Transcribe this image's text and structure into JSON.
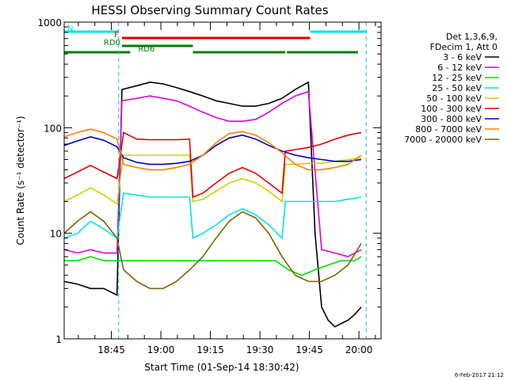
{
  "chart_data": {
    "type": "line",
    "title": "HESSI Observing Summary Count Rates",
    "xlabel": "Start Time (01-Sep-14 18:30:42)",
    "ylabel": "Count Rate (s⁻¹ detector⁻¹)",
    "y_scale": "log",
    "ylim": [
      1,
      1000
    ],
    "xlim_minutes_after_start": [
      0,
      96
    ],
    "x_start_clock": "18:30:42",
    "x_tick_labels": [
      "18:45",
      "19:00",
      "19:15",
      "19:30",
      "19:45",
      "20:00"
    ],
    "x_tick_clock_minutes": [
      1125,
      1140,
      1155,
      1170,
      1185,
      1200
    ],
    "y_tick_labels": [
      "1",
      "10",
      "100",
      "1000"
    ],
    "y_ticks": [
      1,
      10,
      100,
      1000
    ],
    "grid": false,
    "legend_position": "right",
    "legend_header": [
      "Det 1,3,6,9,",
      "FDecim 1, Att 0"
    ],
    "timestamp": "6-Feb-2017 21:12",
    "flags": [
      {
        "label": "N",
        "color": "#00e5e5",
        "segments": [
          [
            0,
            16.5
          ],
          [
            74.5,
            91.5
          ]
        ]
      },
      {
        "label": "F",
        "color": "#e00000",
        "segments": [
          [
            17.5,
            74.5
          ]
        ]
      },
      {
        "label": "RD0",
        "color": "#008000",
        "segments": [
          [
            17.5,
            39
          ]
        ]
      },
      {
        "label": "RD6",
        "color": "#008000",
        "segments": [
          [
            0,
            20
          ],
          [
            39,
            67
          ],
          [
            67.5,
            89
          ]
        ]
      }
    ],
    "vertical_markers_minutes": [
      16.5,
      91.5
    ],
    "series": [
      {
        "name": "3 - 6 keV",
        "color": "#000000",
        "x": [
          0,
          4,
          8,
          12,
          16,
          17.5,
          22,
          26,
          30,
          34,
          38,
          42,
          46,
          50,
          54,
          58,
          62,
          66,
          70,
          74,
          76,
          78,
          80,
          82,
          84,
          86,
          88,
          90
        ],
        "values": [
          3.5,
          3.3,
          3,
          3,
          2.6,
          230,
          250,
          270,
          260,
          240,
          220,
          200,
          180,
          170,
          160,
          160,
          170,
          190,
          230,
          270,
          10,
          2,
          1.5,
          1.3,
          1.4,
          1.5,
          1.7,
          2
        ]
      },
      {
        "name": "6 - 12 keV",
        "color": "#e000e0",
        "x": [
          0,
          4,
          8,
          12,
          16,
          17.5,
          22,
          26,
          30,
          34,
          38,
          42,
          46,
          50,
          54,
          58,
          62,
          66,
          70,
          74,
          78,
          82,
          86,
          90
        ],
        "values": [
          7,
          6.5,
          7,
          6.5,
          6.5,
          180,
          190,
          200,
          190,
          180,
          160,
          140,
          125,
          115,
          115,
          120,
          140,
          170,
          200,
          220,
          7,
          6.5,
          6,
          7
        ]
      },
      {
        "name": "12 - 25 keV",
        "color": "#00e000",
        "x": [
          0,
          4,
          8,
          12,
          16,
          20,
          24,
          28,
          32,
          36,
          40,
          44,
          48,
          52,
          56,
          60,
          64,
          68,
          72,
          76,
          80,
          84,
          88,
          90
        ],
        "values": [
          5.5,
          5.5,
          6,
          5.5,
          5.5,
          5.5,
          5.5,
          5.5,
          5.5,
          5.5,
          5.5,
          5.5,
          5.5,
          5.5,
          5.5,
          5.5,
          5.5,
          4.5,
          4,
          4.5,
          5,
          5.5,
          5.5,
          6
        ]
      },
      {
        "name": "25 - 50 keV",
        "color": "#00e5e5",
        "x": [
          0,
          4,
          8,
          12,
          16,
          18,
          22,
          26,
          30,
          34,
          38,
          39,
          42,
          46,
          50,
          54,
          58,
          62,
          66,
          67,
          70,
          74,
          78,
          82,
          86,
          90
        ],
        "values": [
          9,
          10,
          13,
          11,
          9,
          24,
          23,
          22,
          22,
          22,
          22,
          9,
          10,
          12,
          15,
          17,
          15,
          12,
          9,
          20,
          20,
          20,
          20,
          20,
          21,
          22
        ]
      },
      {
        "name": "50 - 100 keV",
        "color": "#d0d000",
        "x": [
          0,
          4,
          8,
          12,
          16,
          18,
          22,
          26,
          30,
          34,
          38,
          39,
          42,
          46,
          50,
          54,
          58,
          62,
          66,
          67,
          70,
          74,
          78,
          82,
          86,
          90
        ],
        "values": [
          20,
          23,
          27,
          23,
          19,
          55,
          55,
          55,
          55,
          55,
          55,
          20,
          21,
          25,
          30,
          33,
          30,
          25,
          20,
          45,
          45,
          46,
          46,
          48,
          50,
          52
        ]
      },
      {
        "name": "100 - 300 keV",
        "color": "#e00000",
        "x": [
          0,
          4,
          8,
          12,
          16,
          18,
          22,
          26,
          30,
          34,
          38,
          39,
          42,
          46,
          50,
          54,
          58,
          62,
          66,
          67,
          70,
          74,
          78,
          82,
          86,
          90
        ],
        "values": [
          33,
          38,
          44,
          38,
          33,
          90,
          78,
          77,
          77,
          77,
          78,
          22,
          24,
          30,
          37,
          42,
          37,
          30,
          24,
          60,
          62,
          65,
          70,
          78,
          85,
          90
        ]
      },
      {
        "name": "300 - 800 keV",
        "color": "#0000c0",
        "x": [
          0,
          4,
          8,
          12,
          16,
          18,
          22,
          26,
          30,
          34,
          38,
          42,
          46,
          50,
          54,
          58,
          62,
          66,
          70,
          74,
          78,
          82,
          86,
          90
        ],
        "values": [
          68,
          75,
          82,
          76,
          66,
          52,
          47,
          45,
          45,
          46,
          48,
          55,
          68,
          80,
          85,
          78,
          68,
          60,
          55,
          52,
          50,
          48,
          48,
          50
        ]
      },
      {
        "name": "800 - 7000 keV",
        "color": "#ff8000",
        "x": [
          0,
          4,
          8,
          12,
          16,
          18,
          22,
          26,
          30,
          34,
          38,
          42,
          46,
          50,
          54,
          58,
          62,
          66,
          70,
          74,
          78,
          82,
          86,
          90
        ],
        "values": [
          82,
          90,
          97,
          90,
          78,
          45,
          42,
          40,
          40,
          42,
          45,
          55,
          72,
          88,
          92,
          85,
          72,
          58,
          45,
          40,
          40,
          42,
          45,
          55
        ]
      },
      {
        "name": "7000 - 20000 keV",
        "color": "#806000",
        "x": [
          0,
          4,
          8,
          12,
          16,
          18,
          22,
          26,
          30,
          34,
          38,
          42,
          46,
          50,
          54,
          58,
          62,
          66,
          70,
          74,
          78,
          82,
          86,
          90
        ],
        "values": [
          10,
          13,
          16,
          13,
          9,
          4.5,
          3.5,
          3,
          3,
          3.5,
          4.5,
          6,
          9,
          13,
          16,
          14,
          10,
          6,
          4,
          3.5,
          3.5,
          4,
          5,
          8
        ]
      }
    ]
  }
}
